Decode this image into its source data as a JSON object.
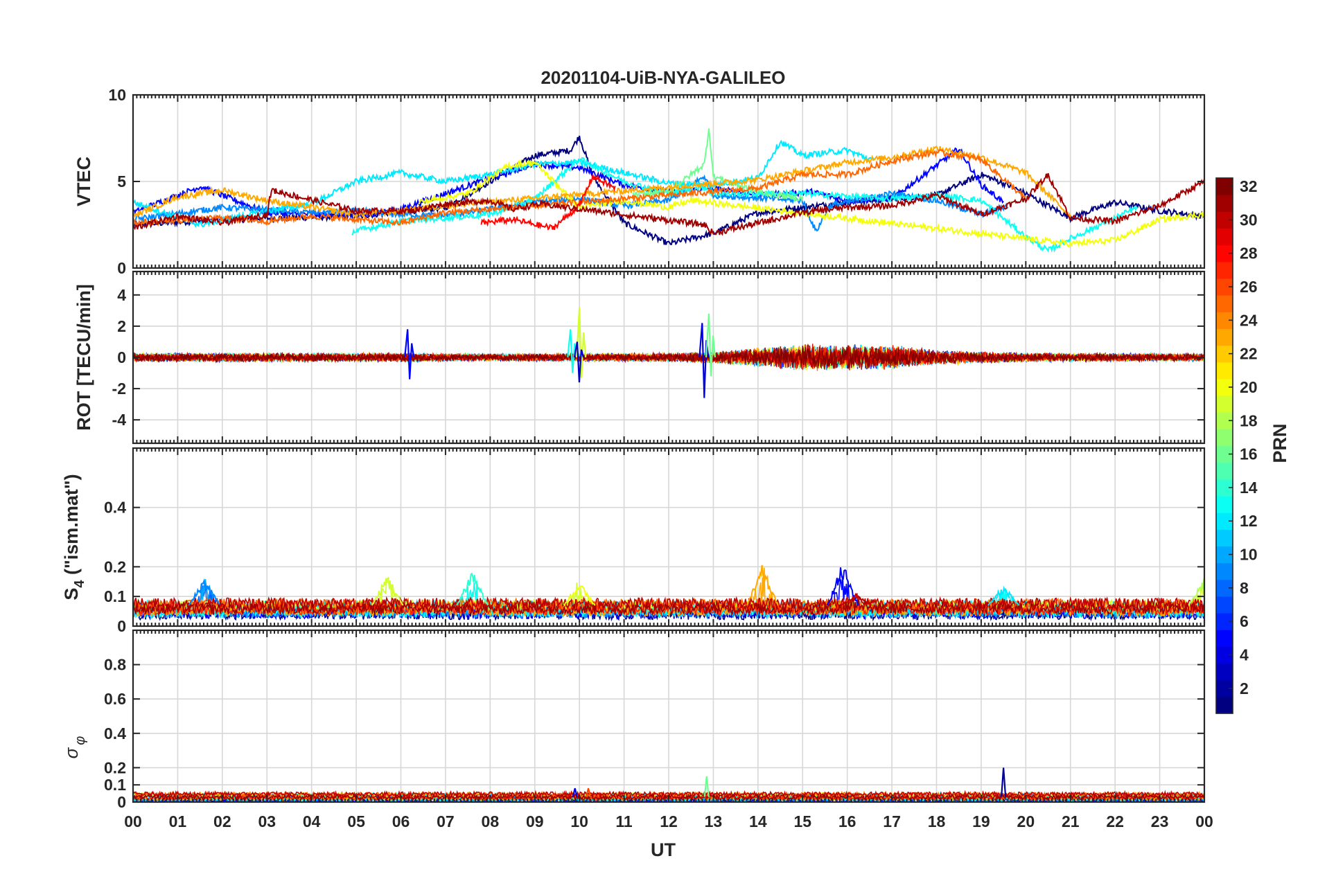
{
  "chart_data": {
    "type": "line",
    "title": "20201104-UiB-NYA-GALILEO",
    "xlabel": "UT",
    "x_tick_labels": [
      "00",
      "01",
      "02",
      "03",
      "04",
      "05",
      "06",
      "07",
      "08",
      "09",
      "10",
      "11",
      "12",
      "13",
      "14",
      "15",
      "16",
      "17",
      "18",
      "19",
      "20",
      "21",
      "22",
      "23",
      "00"
    ],
    "xlim": [
      0,
      24
    ],
    "grid": true,
    "colorbar": {
      "label": "PRN",
      "range": [
        1,
        32
      ],
      "colormap": "jet",
      "tick_labels": [
        "2",
        "4",
        "6",
        "8",
        "10",
        "12",
        "14",
        "16",
        "18",
        "20",
        "22",
        "24",
        "26",
        "28",
        "30",
        "32"
      ]
    },
    "panels": [
      {
        "key": "vtec",
        "ylabel": "VTEC",
        "ylim": [
          0,
          10
        ],
        "ytick_labels": [
          "0",
          "5",
          "10"
        ],
        "series": [
          {
            "prn": 1,
            "points": [
              [
                0,
                2.5
              ],
              [
                2,
                2.8
              ],
              [
                5,
                3.0
              ],
              [
                7,
                3.5
              ],
              [
                9,
                6.5
              ],
              [
                9.8,
                6.8
              ],
              [
                10,
                7.6
              ],
              [
                10.3,
                5.3
              ],
              [
                11,
                2.6
              ],
              [
                12,
                1.4
              ],
              [
                13,
                2.0
              ],
              [
                14,
                3.2
              ],
              [
                16,
                3.8
              ],
              [
                18,
                4.2
              ],
              [
                19,
                5.4
              ],
              [
                19.5,
                4.9
              ],
              [
                20,
                4.3
              ],
              [
                21,
                2.9
              ],
              [
                22,
                3.8
              ],
              [
                23,
                3.3
              ],
              [
                24,
                3.0
              ]
            ]
          },
          {
            "prn": 5,
            "points": [
              [
                0,
                3.2
              ],
              [
                1.5,
                4.7
              ],
              [
                3,
                3.2
              ],
              [
                5,
                3.0
              ],
              [
                6,
                3.4
              ],
              [
                8,
                5.2
              ],
              [
                9,
                6.0
              ],
              [
                10,
                5.8
              ],
              [
                11,
                4.8
              ],
              [
                12,
                4.4
              ],
              [
                13,
                4.6
              ],
              [
                14,
                4.2
              ],
              [
                15.2,
                4.4
              ],
              [
                16,
                3.9
              ],
              [
                17,
                4.0
              ],
              [
                18.5,
                6.9
              ],
              [
                19,
                4.8
              ],
              [
                19.5,
                3.8
              ]
            ]
          },
          {
            "prn": 9,
            "points": [
              [
                0,
                2.8
              ],
              [
                2,
                3.5
              ],
              [
                4,
                3.2
              ],
              [
                5,
                3.3
              ],
              [
                6,
                3.1
              ],
              [
                7,
                3.0
              ],
              [
                8,
                3.4
              ],
              [
                9,
                3.8
              ],
              [
                10,
                4.0
              ],
              [
                11,
                3.6
              ],
              [
                12,
                3.9
              ],
              [
                12.8,
                5.3
              ],
              [
                13,
                4.2
              ],
              [
                15,
                3.9
              ],
              [
                15.3,
                2.1
              ],
              [
                15.6,
                3.6
              ],
              [
                17,
                4.3
              ],
              [
                18,
                3.9
              ],
              [
                19,
                3.1
              ],
              [
                19.6,
                3.6
              ]
            ]
          },
          {
            "prn": 12,
            "points": [
              [
                0,
                3.8
              ],
              [
                1.5,
                2.5
              ],
              [
                3,
                3.3
              ],
              [
                4,
                3.7
              ],
              [
                5,
                5.0
              ],
              [
                6,
                5.5
              ],
              [
                7,
                5.0
              ],
              [
                8,
                5.4
              ],
              [
                9,
                6.0
              ],
              [
                10,
                6.1
              ],
              [
                11,
                5.5
              ],
              [
                12,
                4.9
              ],
              [
                13,
                4.8
              ],
              [
                14,
                5.2
              ],
              [
                14.5,
                7.3
              ],
              [
                15,
                6.5
              ],
              [
                16,
                6.8
              ],
              [
                16.6,
                6.2
              ]
            ]
          },
          {
            "prn": 13,
            "points": [
              [
                4.9,
                2.1
              ],
              [
                6,
                2.7
              ],
              [
                7,
                2.9
              ],
              [
                8,
                3.1
              ],
              [
                9,
                4.0
              ],
              [
                10,
                6.3
              ],
              [
                11,
                5.0
              ],
              [
                12,
                4.3
              ],
              [
                12.8,
                4.7
              ],
              [
                13,
                4.3
              ],
              [
                15,
                4.3
              ],
              [
                17,
                4.0
              ],
              [
                18,
                4.2
              ],
              [
                19,
                3.9
              ],
              [
                20,
                1.8
              ],
              [
                20.5,
                1.0
              ],
              [
                21,
                1.7
              ],
              [
                22,
                2.9
              ],
              [
                22.5,
                3.5
              ]
            ]
          },
          {
            "prn": 16,
            "points": [
              [
                11.2,
                4.2
              ],
              [
                12,
                4.4
              ],
              [
                12.8,
                6.0
              ],
              [
                12.9,
                8.1
              ],
              [
                13,
                5.3
              ],
              [
                14,
                4.4
              ],
              [
                15,
                4.0
              ]
            ]
          },
          {
            "prn": 20,
            "points": [
              [
                6.4,
                3.8
              ],
              [
                7.5,
                4.3
              ],
              [
                8.4,
                5.9
              ],
              [
                9,
                6.1
              ],
              [
                10,
                3.5
              ],
              [
                11,
                3.9
              ],
              [
                12,
                3.5
              ],
              [
                12.5,
                3.9
              ],
              [
                21,
                1.4
              ],
              [
                22,
                1.6
              ],
              [
                23,
                2.8
              ],
              [
                24,
                3.1
              ]
            ]
          },
          {
            "prn": 23,
            "points": [
              [
                0,
                3.0
              ],
              [
                1,
                4.1
              ],
              [
                2,
                4.5
              ],
              [
                3,
                3.9
              ],
              [
                4,
                3.5
              ],
              [
                5,
                3.1
              ],
              [
                6,
                3.3
              ],
              [
                7,
                3.6
              ],
              [
                14,
                5.1
              ],
              [
                16,
                6.1
              ],
              [
                17,
                6.4
              ],
              [
                18,
                6.9
              ],
              [
                19,
                6.4
              ],
              [
                20,
                5.5
              ],
              [
                21,
                3.0
              ]
            ]
          },
          {
            "prn": 25,
            "points": [
              [
                0,
                2.6
              ],
              [
                2,
                2.9
              ],
              [
                3,
                2.7
              ],
              [
                4,
                3.0
              ],
              [
                5,
                2.8
              ],
              [
                6,
                2.6
              ],
              [
                7,
                3.2
              ],
              [
                14,
                4.6
              ],
              [
                15,
                5.4
              ],
              [
                16,
                5.4
              ],
              [
                17,
                6.2
              ],
              [
                18,
                6.7
              ],
              [
                19,
                6.3
              ],
              [
                20,
                4.0
              ]
            ]
          },
          {
            "prn": 28,
            "points": [
              [
                7.8,
                2.6
              ],
              [
                8.5,
                2.8
              ],
              [
                9.4,
                2.3
              ],
              [
                10,
                3.6
              ],
              [
                10.3,
                5.3
              ],
              [
                10.8,
                4.6
              ]
            ]
          },
          {
            "prn": 31,
            "points": [
              [
                0,
                2.3
              ],
              [
                1,
                3.0
              ],
              [
                2,
                2.6
              ],
              [
                3,
                3.1
              ],
              [
                3.1,
                4.5
              ],
              [
                5,
                3.3
              ],
              [
                6.2,
                3.3
              ],
              [
                7,
                3.7
              ],
              [
                8,
                3.9
              ],
              [
                8.5,
                3.4
              ],
              [
                9.1,
                3.7
              ],
              [
                12.8,
                2.5
              ],
              [
                13,
                2.0
              ],
              [
                14,
                2.6
              ],
              [
                15,
                3.2
              ],
              [
                16,
                3.5
              ],
              [
                17,
                3.6
              ],
              [
                18,
                4.2
              ],
              [
                19,
                3.1
              ],
              [
                20,
                4.0
              ],
              [
                20.5,
                5.4
              ],
              [
                21,
                2.9
              ],
              [
                22,
                2.7
              ],
              [
                23,
                3.6
              ],
              [
                24,
                5.0
              ]
            ]
          }
        ]
      },
      {
        "key": "rot",
        "ylabel": "ROT [TECU/min]",
        "ylim": [
          -5.5,
          5.5
        ],
        "ytick_labels": [
          "-4",
          "-2",
          "0",
          "2",
          "4"
        ],
        "spikes": [
          {
            "prn": 5,
            "t": 6.15,
            "peak": 1.8,
            "trough": -1.4
          },
          {
            "prn": 13,
            "t": 9.8,
            "peak": 1.8,
            "trough": -1.0
          },
          {
            "prn": 19,
            "t": 10.0,
            "peak": 3.2,
            "trough": -1.3
          },
          {
            "prn": 3,
            "t": 9.95,
            "peak": 1.0,
            "trough": -1.6
          },
          {
            "prn": 4,
            "t": 12.75,
            "peak": 2.2,
            "trough": -2.6
          },
          {
            "prn": 16,
            "t": 12.9,
            "peak": 2.8,
            "trough": -1.2
          }
        ],
        "noise_amplitude_by_hour": [
          [
            0,
            0.3
          ],
          [
            6,
            0.3
          ],
          [
            8,
            0.25
          ],
          [
            12,
            0.3
          ],
          [
            13,
            0.4
          ],
          [
            15,
            0.9
          ],
          [
            17,
            0.8
          ],
          [
            18,
            0.5
          ],
          [
            20,
            0.3
          ],
          [
            24,
            0.25
          ]
        ]
      },
      {
        "key": "s4",
        "ylabel": "S4 (\"ism.mat\")",
        "ylim": [
          0,
          0.6
        ],
        "ytick_labels": [
          "0",
          "0.1",
          "0.2",
          "0.4"
        ],
        "baseline_range": [
          0.04,
          0.08
        ],
        "bursts": [
          {
            "prn": 9,
            "t": 1.6,
            "peak": 0.17
          },
          {
            "prn": 19,
            "t": 5.7,
            "peak": 0.18
          },
          {
            "prn": 14,
            "t": 7.6,
            "peak": 0.2
          },
          {
            "prn": 20,
            "t": 10.0,
            "peak": 0.15
          },
          {
            "prn": 23,
            "t": 14.1,
            "peak": 0.21
          },
          {
            "prn": 5,
            "t": 15.9,
            "peak": 0.22
          },
          {
            "prn": 30,
            "t": 16.2,
            "peak": 0.11
          },
          {
            "prn": 12,
            "t": 19.5,
            "peak": 0.14
          },
          {
            "prn": 18,
            "t": 24.0,
            "peak": 0.17
          }
        ]
      },
      {
        "key": "sigma",
        "ylabel": "σφ",
        "ylim": [
          0,
          1.0
        ],
        "ytick_labels": [
          "0",
          "0.1",
          "0.2",
          "0.4",
          "0.6",
          "0.8"
        ],
        "baseline_range": [
          0.01,
          0.05
        ],
        "spikes": [
          {
            "prn": 4,
            "t": 9.9,
            "peak": 0.08
          },
          {
            "prn": 26,
            "t": 10.2,
            "peak": 0.08
          },
          {
            "prn": 16,
            "t": 12.85,
            "peak": 0.15
          },
          {
            "prn": 2,
            "t": 19.5,
            "peak": 0.2
          }
        ]
      }
    ]
  }
}
